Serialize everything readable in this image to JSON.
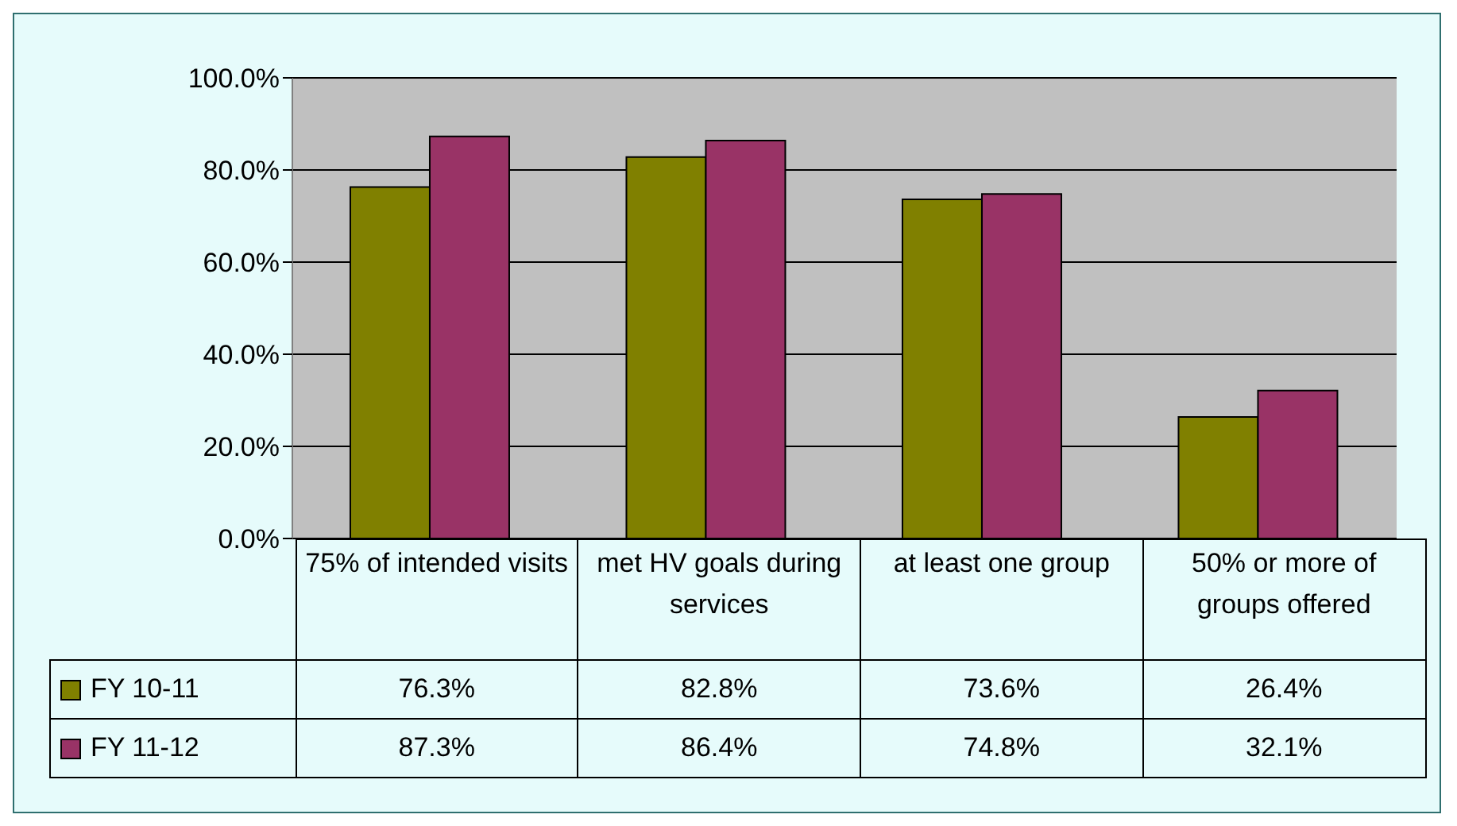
{
  "chart_data": {
    "type": "bar",
    "categories": [
      "75% of intended visits",
      "met HV goals during services",
      "at least one group",
      "50% or more of groups offered"
    ],
    "series": [
      {
        "name": "FY 10-11",
        "color": "#808000",
        "values": [
          76.3,
          82.8,
          73.6,
          26.4
        ],
        "value_labels": [
          "76.3%",
          "82.8%",
          "73.6%",
          "26.4%"
        ]
      },
      {
        "name": "FY 11-12",
        "color": "#993366",
        "values": [
          87.3,
          86.4,
          74.8,
          32.1
        ],
        "value_labels": [
          "87.3%",
          "86.4%",
          "74.8%",
          "32.1%"
        ]
      }
    ],
    "ylim": [
      0,
      100
    ],
    "yticks": [
      {
        "value": 0,
        "label": "0.0%"
      },
      {
        "value": 20,
        "label": "20.0%"
      },
      {
        "value": 40,
        "label": "40.0%"
      },
      {
        "value": 60,
        "label": "60.0%"
      },
      {
        "value": 80,
        "label": "80.0%"
      },
      {
        "value": 100,
        "label": "100.0%"
      }
    ],
    "grid": "y",
    "legend": "bottom left"
  }
}
